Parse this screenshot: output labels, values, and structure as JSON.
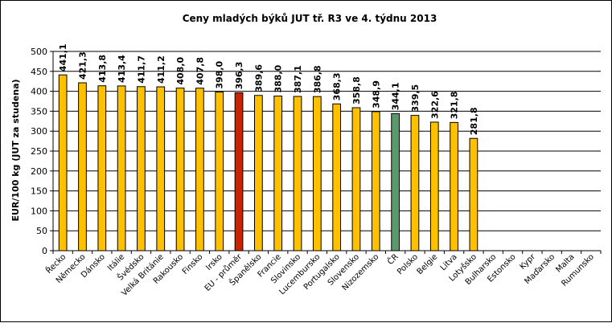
{
  "chart_data": {
    "type": "bar",
    "title": "Ceny mladých býků JUT  tř. R3  ve 4. týdnu 2013",
    "ylabel": "EUR/100 kg (JUT za studena)",
    "xlabel": "",
    "ylim": [
      0,
      500
    ],
    "yticks": [
      0,
      50,
      100,
      150,
      200,
      250,
      300,
      350,
      400,
      450,
      500
    ],
    "grid": true,
    "legend": "none",
    "categories": [
      "Řecko",
      "Německo",
      "Dánsko",
      "Itálie",
      "Švédsko",
      "Velká Británie",
      "Rakousko",
      "Finsko",
      "Irsko",
      "EU - průměr",
      "Španělsko",
      "Francie",
      "Slovinsko",
      "Lucembursko",
      "Portugalsko",
      "Slovensko",
      "Nizozemsko",
      "ČR",
      "Polsko",
      "Belgie",
      "Litva",
      "Lotyšsko",
      "Bulharsko",
      "Estonsko",
      "Kypr",
      "Maďarsko",
      "Malta",
      "Rumunsko"
    ],
    "values": [
      441.1,
      421.3,
      413.8,
      413.4,
      411.7,
      411.2,
      408.0,
      407.8,
      398.0,
      396.3,
      389.6,
      388.0,
      387.1,
      386.8,
      368.3,
      358.8,
      348.9,
      344.1,
      339.5,
      322.6,
      321.8,
      281.8,
      null,
      null,
      null,
      null,
      null,
      null
    ],
    "value_labels": [
      "441,1",
      "421,3",
      "413,8",
      "413,4",
      "411,7",
      "411,2",
      "408,0",
      "407,8",
      "398,0",
      "396,3",
      "389,6",
      "388,0",
      "387,1",
      "386,8",
      "368,3",
      "358,8",
      "348,9",
      "344,1",
      "339,5",
      "322,6",
      "321,8",
      "281,8",
      "",
      "",
      "",
      "",
      "",
      ""
    ],
    "colors": {
      "default": "#FFC000",
      "highlight_eu": "#CC2200",
      "highlight_cr": "#5A9A6A",
      "grid": "#000000",
      "bar_stroke": "#000000"
    },
    "highlight": {
      "EU - průměr": "highlight_eu",
      "ČR": "highlight_cr"
    }
  }
}
